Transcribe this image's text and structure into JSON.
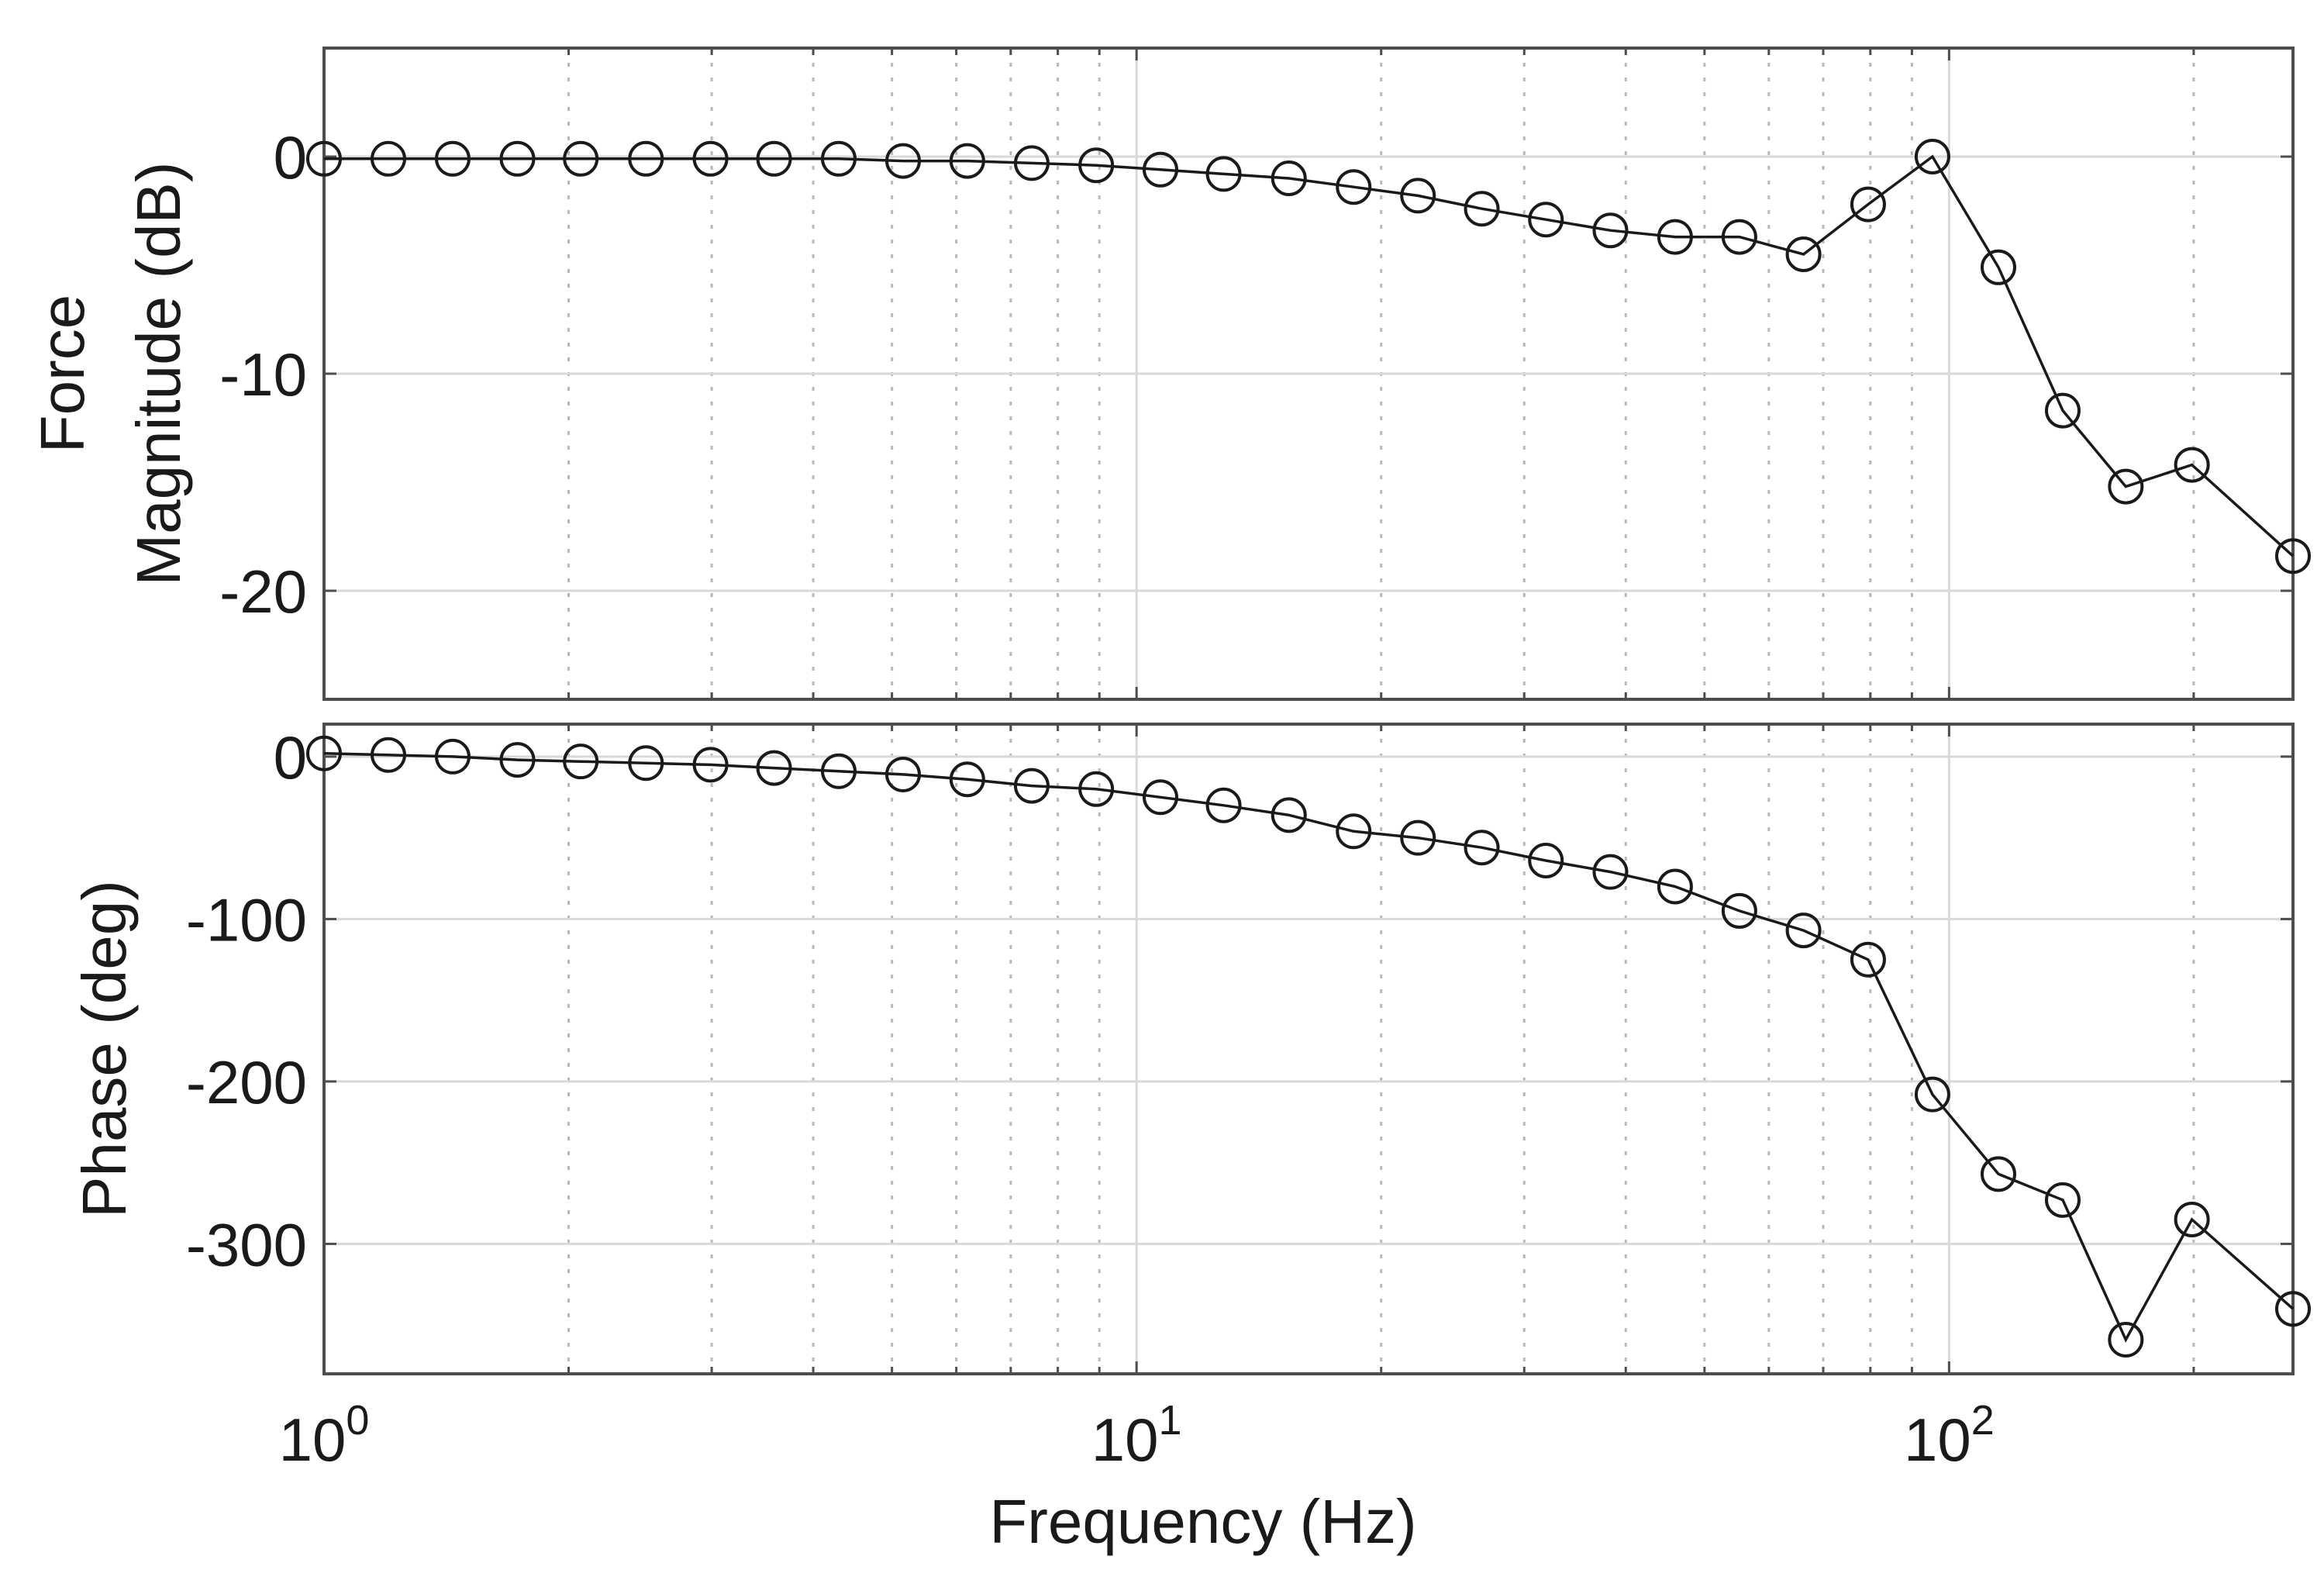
{
  "chart_data": [
    {
      "type": "line",
      "id": "magnitude",
      "title": "",
      "xlabel": "",
      "ylabel_lines": [
        "Force",
        "Magnitude (dB)"
      ],
      "xscale": "log",
      "xlim": [
        1,
        265
      ],
      "ylim": [
        -25,
        5
      ],
      "yticks": [
        0,
        -10,
        -20
      ],
      "ytick_labels": [
        "0",
        "-10",
        "-20"
      ],
      "grid": true,
      "marker": "open-circle",
      "series": [
        {
          "name": "Force magnitude",
          "x": [
            1.0,
            1.2,
            1.44,
            1.73,
            2.07,
            2.49,
            2.99,
            3.58,
            4.3,
            5.16,
            6.19,
            7.43,
            8.92,
            10.7,
            12.8,
            15.4,
            18.5,
            22.2,
            26.6,
            31.9,
            38.3,
            46.0,
            55.2,
            66.2,
            79.5,
            95.4,
            115,
            138,
            165,
            199,
            265
          ],
          "values": [
            -0.1,
            -0.1,
            -0.1,
            -0.1,
            -0.1,
            -0.1,
            -0.1,
            -0.1,
            -0.1,
            -0.2,
            -0.2,
            -0.3,
            -0.4,
            -0.6,
            -0.8,
            -1.0,
            -1.4,
            -1.8,
            -2.4,
            -2.9,
            -3.4,
            -3.7,
            -3.7,
            -4.5,
            -2.2,
            0.0,
            -5.1,
            -11.7,
            -15.2,
            -14.2,
            -18.4
          ]
        }
      ]
    },
    {
      "type": "line",
      "id": "phase",
      "title": "",
      "xlabel": "Frequency (Hz)",
      "ylabel_lines": [
        "Phase (deg)"
      ],
      "xscale": "log",
      "xlim": [
        1,
        265
      ],
      "ylim": [
        -380,
        20
      ],
      "yticks": [
        0,
        -100,
        -200,
        -300
      ],
      "ytick_labels": [
        "0",
        "-100",
        "-200",
        "-300"
      ],
      "xticks": [
        1,
        10,
        100
      ],
      "xtick_labels": [
        {
          "base": "10",
          "exp": "0"
        },
        {
          "base": "10",
          "exp": "1"
        },
        {
          "base": "10",
          "exp": "2"
        }
      ],
      "grid": true,
      "marker": "open-circle",
      "series": [
        {
          "name": "Phase",
          "x": [
            1.0,
            1.2,
            1.44,
            1.73,
            2.07,
            2.49,
            2.99,
            3.58,
            4.3,
            5.16,
            6.19,
            7.43,
            8.92,
            10.7,
            12.8,
            15.4,
            18.5,
            22.2,
            26.6,
            31.9,
            38.3,
            46.0,
            55.2,
            66.2,
            79.5,
            95.4,
            115,
            138,
            165,
            199,
            265
          ],
          "values": [
            2,
            1,
            0,
            -2,
            -3,
            -4,
            -5,
            -7,
            -9,
            -11,
            -14,
            -18,
            -20,
            -25,
            -30,
            -36,
            -46,
            -50,
            -56,
            -64,
            -71,
            -80,
            -95,
            -107,
            -125,
            -208,
            -257,
            -273,
            -359,
            -285,
            -340
          ]
        }
      ]
    }
  ]
}
